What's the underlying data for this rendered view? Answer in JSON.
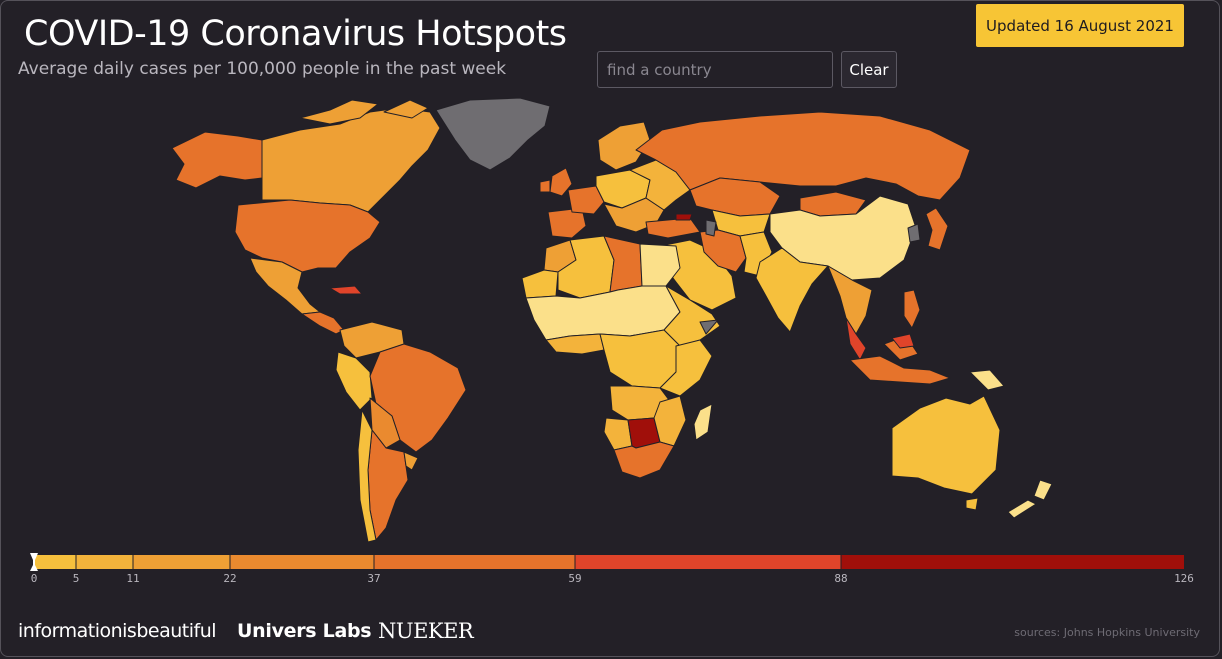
{
  "header": {
    "title": "COVID-19 Coronavirus Hotspots",
    "subtitle": "Average daily cases per 100,000 people in the past week",
    "updated": "Updated 16 August 2021"
  },
  "search": {
    "placeholder": "find a country",
    "value": "",
    "clear_label": "Clear"
  },
  "legend": {
    "ticks": [
      "0",
      "5",
      "11",
      "22",
      "37",
      "59",
      "88",
      "126"
    ],
    "tick_values": [
      0,
      5,
      11,
      22,
      37,
      59,
      88,
      126
    ],
    "bins": [
      {
        "from": 0,
        "to": 5,
        "color": "#f6c03d"
      },
      {
        "from": 5,
        "to": 11,
        "color": "#f3b33b"
      },
      {
        "from": 11,
        "to": 22,
        "color": "#eea035"
      },
      {
        "from": 22,
        "to": 37,
        "color": "#ea8a2f"
      },
      {
        "from": 37,
        "to": 59,
        "color": "#e6732b"
      },
      {
        "from": 59,
        "to": 88,
        "color": "#e0442a"
      },
      {
        "from": 88,
        "to": 126,
        "color": "#a00f0a"
      }
    ],
    "no_data_color": "#6f6d71",
    "max": 126
  },
  "colors": {
    "background": "#232027",
    "highlight": "#f7c535",
    "level_1": "#fbe08a",
    "level_2": "#f6c03d",
    "level_3": "#eea035",
    "level_4": "#e6732b",
    "level_5": "#e0442a",
    "level_6": "#a00f0a",
    "no_data": "#6f6d71"
  },
  "footer": {
    "brand_iib": "informationisbeautiful",
    "brand_ul": "Univers Labs",
    "brand_nk": "NUEKER",
    "sources": "sources: Johns Hopkins University"
  }
}
